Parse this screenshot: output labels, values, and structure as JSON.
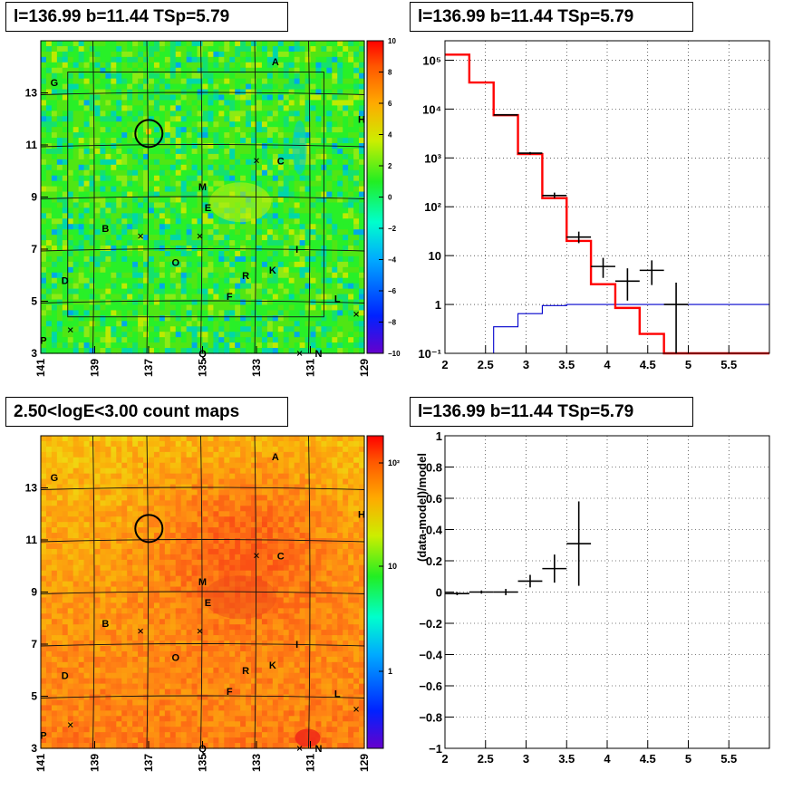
{
  "panels": {
    "top_left": {
      "title": "l=136.99 b=11.44 TSp=5.79"
    },
    "top_right": {
      "title": "l=136.99 b=11.44 TSp=5.79"
    },
    "bottom_left": {
      "title": "2.50<logE<3.00 count maps"
    },
    "bottom_right": {
      "title": "l=136.99 b=11.44 TSp=5.79"
    }
  },
  "colors": {
    "model_line": "#ff0000",
    "background_line": "#0000cc",
    "data_points": "#000000",
    "grid": "#000000"
  },
  "chart_data": [
    {
      "id": "residual-map",
      "type": "heatmap",
      "title": "l=136.99 b=11.44 TSp=5.79",
      "x_tick_labels": [
        "141",
        "139",
        "137",
        "135",
        "133",
        "131",
        "129"
      ],
      "y_tick_labels": [
        "3",
        "5",
        "7",
        "9",
        "11",
        "13"
      ],
      "xlim": [
        141,
        129
      ],
      "ylim": [
        3,
        15
      ],
      "colorbar": {
        "min": -10,
        "max": 10,
        "tick_labels": [
          "10",
          "8",
          "6",
          "4",
          "2",
          "0",
          "−2",
          "−4",
          "−6",
          "−8",
          "−10"
        ]
      },
      "source_labels": [
        {
          "text": "A",
          "l": 132.3,
          "b": 14.2
        },
        {
          "text": "G",
          "l": 140.5,
          "b": 13.4
        },
        {
          "text": "H",
          "l": 129.1,
          "b": 12.0
        },
        {
          "text": "C",
          "l": 132.1,
          "b": 10.4
        },
        {
          "text": "M",
          "l": 135.0,
          "b": 9.4
        },
        {
          "text": "E",
          "l": 134.8,
          "b": 8.6
        },
        {
          "text": "B",
          "l": 138.6,
          "b": 7.8
        },
        {
          "text": "I",
          "l": 131.5,
          "b": 7.0
        },
        {
          "text": "O",
          "l": 136.0,
          "b": 6.5
        },
        {
          "text": "K",
          "l": 132.4,
          "b": 6.2
        },
        {
          "text": "R",
          "l": 133.4,
          "b": 6.0
        },
        {
          "text": "D",
          "l": 140.1,
          "b": 5.8
        },
        {
          "text": "F",
          "l": 134.0,
          "b": 5.2
        },
        {
          "text": "L",
          "l": 130.0,
          "b": 5.1
        },
        {
          "text": "P",
          "l": 140.9,
          "b": 3.5
        },
        {
          "text": "Q",
          "l": 135.0,
          "b": 3.0
        },
        {
          "text": "N",
          "l": 130.7,
          "b": 3.0
        }
      ],
      "circle": {
        "l": 136.99,
        "b": 11.44
      }
    },
    {
      "id": "spectrum",
      "type": "line",
      "title": "l=136.99 b=11.44 TSp=5.79",
      "x_tick_labels": [
        "2",
        "2.5",
        "3",
        "3.5",
        "4",
        "4.5",
        "5",
        "5.5"
      ],
      "y_tick_labels": [
        "10⁻¹",
        "1",
        "10",
        "10²",
        "10³",
        "10⁴",
        "10⁵"
      ],
      "xlim": [
        2,
        6
      ],
      "ylim": [
        0.1,
        250000
      ],
      "y_scale": "log",
      "series": [
        {
          "kind": "step",
          "x_edges": [
            2.0,
            2.3,
            2.6,
            2.9,
            3.2,
            3.5,
            3.8,
            4.1,
            4.4,
            4.7,
            5.0,
            6.0
          ],
          "values": [
            130000,
            35000,
            7500,
            1200,
            150,
            20,
            2.6,
            0.85,
            0.25,
            0.1,
            0.1
          ]
        },
        {
          "kind": "step",
          "x_edges": [
            2.6,
            2.9,
            3.2,
            3.5,
            6.0
          ],
          "values": [
            0.35,
            0.65,
            0.95,
            1.0
          ]
        },
        {
          "kind": "errorbar",
          "points": [
            {
              "x": 2.75,
              "y": 7600,
              "xerr": 0.15,
              "ylo": 7400,
              "yhi": 7800
            },
            {
              "x": 3.05,
              "y": 1250,
              "xerr": 0.15,
              "ylo": 1180,
              "yhi": 1320
            },
            {
              "x": 3.35,
              "y": 170,
              "xerr": 0.15,
              "ylo": 150,
              "yhi": 195
            },
            {
              "x": 3.65,
              "y": 24,
              "xerr": 0.15,
              "ylo": 18,
              "yhi": 31
            },
            {
              "x": 3.95,
              "y": 6,
              "xerr": 0.15,
              "ylo": 3.5,
              "yhi": 9
            },
            {
              "x": 4.25,
              "y": 3,
              "xerr": 0.15,
              "ylo": 1.2,
              "yhi": 5.5
            },
            {
              "x": 4.55,
              "y": 5,
              "xerr": 0.15,
              "ylo": 2.5,
              "yhi": 8
            },
            {
              "x": 4.85,
              "y": 1,
              "xerr": 0.15,
              "ylo": 0.1,
              "yhi": 2.8
            }
          ]
        }
      ]
    },
    {
      "id": "count-map",
      "type": "heatmap",
      "title": "2.50<logE<3.00 count maps",
      "x_tick_labels": [
        "141",
        "139",
        "137",
        "135",
        "133",
        "131",
        "129"
      ],
      "y_tick_labels": [
        "3",
        "5",
        "7",
        "9",
        "11",
        "13"
      ],
      "xlim": [
        141,
        129
      ],
      "ylim": [
        3,
        15
      ],
      "colorbar": {
        "scale": "log",
        "tick_labels": [
          "10²",
          "10",
          "1"
        ]
      },
      "source_labels": [
        {
          "text": "A",
          "l": 132.3,
          "b": 14.2
        },
        {
          "text": "G",
          "l": 140.5,
          "b": 13.4
        },
        {
          "text": "H",
          "l": 129.1,
          "b": 12.0
        },
        {
          "text": "C",
          "l": 132.1,
          "b": 10.4
        },
        {
          "text": "M",
          "l": 135.0,
          "b": 9.4
        },
        {
          "text": "E",
          "l": 134.8,
          "b": 8.6
        },
        {
          "text": "B",
          "l": 138.6,
          "b": 7.8
        },
        {
          "text": "I",
          "l": 131.5,
          "b": 7.0
        },
        {
          "text": "O",
          "l": 136.0,
          "b": 6.5
        },
        {
          "text": "K",
          "l": 132.4,
          "b": 6.2
        },
        {
          "text": "R",
          "l": 133.4,
          "b": 6.0
        },
        {
          "text": "D",
          "l": 140.1,
          "b": 5.8
        },
        {
          "text": "F",
          "l": 134.0,
          "b": 5.2
        },
        {
          "text": "L",
          "l": 130.0,
          "b": 5.1
        },
        {
          "text": "P",
          "l": 140.9,
          "b": 3.5
        },
        {
          "text": "Q",
          "l": 135.0,
          "b": 3.0
        },
        {
          "text": "N",
          "l": 130.7,
          "b": 3.0
        }
      ],
      "circle": {
        "l": 136.99,
        "b": 11.44
      }
    },
    {
      "id": "residuals",
      "type": "scatter",
      "title": "l=136.99 b=11.44 TSp=5.79",
      "ylabel": "(data-model)/model",
      "x_tick_labels": [
        "2",
        "2.5",
        "3",
        "3.5",
        "4",
        "4.5",
        "5",
        "5.5"
      ],
      "y_tick_labels": [
        "−1",
        "−0.8",
        "−0.6",
        "−0.4",
        "−0.2",
        "0",
        "0.2",
        "0.4",
        "0.6",
        "0.8",
        "1"
      ],
      "xlim": [
        2,
        6
      ],
      "ylim": [
        -1,
        1
      ],
      "points": [
        {
          "x": 2.15,
          "y": -0.01,
          "xerr": 0.15,
          "ylo": -0.02,
          "yhi": 0.0
        },
        {
          "x": 2.45,
          "y": 0.0,
          "xerr": 0.15,
          "ylo": -0.01,
          "yhi": 0.01
        },
        {
          "x": 2.75,
          "y": 0.0,
          "xerr": 0.15,
          "ylo": -0.02,
          "yhi": 0.02
        },
        {
          "x": 3.05,
          "y": 0.07,
          "xerr": 0.15,
          "ylo": 0.03,
          "yhi": 0.11
        },
        {
          "x": 3.35,
          "y": 0.15,
          "xerr": 0.15,
          "ylo": 0.06,
          "yhi": 0.24
        },
        {
          "x": 3.65,
          "y": 0.31,
          "xerr": 0.15,
          "ylo": 0.04,
          "yhi": 0.58
        }
      ]
    }
  ]
}
